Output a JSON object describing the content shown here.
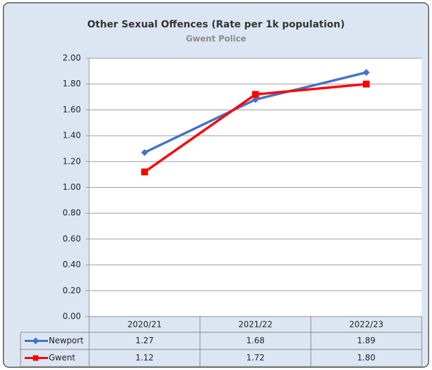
{
  "chart_data": {
    "type": "line",
    "title": "Other Sexual Offences (Rate per 1k population)",
    "subtitle": "Gwent Police",
    "categories": [
      "2020/21",
      "2021/22",
      "2022/23"
    ],
    "series": [
      {
        "name": "Newport",
        "color": "#4472c4",
        "marker": "diamond",
        "values": [
          1.27,
          1.68,
          1.89
        ]
      },
      {
        "name": "Gwent",
        "color": "#ff0000",
        "marker": "square",
        "values": [
          1.12,
          1.72,
          1.8
        ],
        "value_labels": [
          "1.12",
          "1.72",
          "1.80"
        ]
      }
    ],
    "ylim": [
      0,
      2
    ],
    "yticks": [
      {
        "value": 0,
        "label": "0.00"
      },
      {
        "value": 0.2,
        "label": "0.20"
      },
      {
        "value": 0.4,
        "label": "0.40"
      },
      {
        "value": 0.6,
        "label": "0.60"
      },
      {
        "value": 0.8,
        "label": "0.80"
      },
      {
        "value": 1,
        "label": "1.00"
      },
      {
        "value": 1.2,
        "label": "1.20"
      },
      {
        "value": 1.4,
        "label": "1.40"
      },
      {
        "value": 1.6,
        "label": "1.60"
      },
      {
        "value": 1.8,
        "label": "1.80"
      },
      {
        "value": 2,
        "label": "2.00"
      }
    ],
    "grid": true,
    "data_table": true
  }
}
